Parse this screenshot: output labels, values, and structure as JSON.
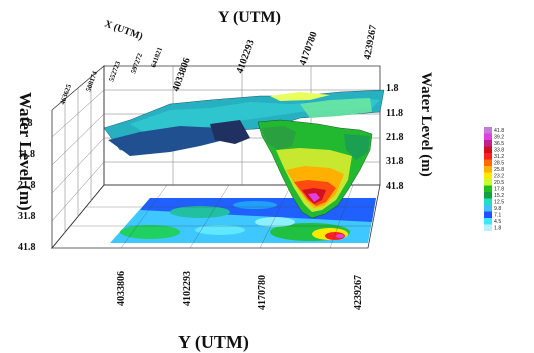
{
  "chart_data": {
    "type": "surface3d",
    "title": "",
    "axes": {
      "y_top_label": "Y (UTM)",
      "y_bottom_label": "Y (UTM)",
      "x_label": "X (UTM)",
      "z_left_label": "Water Level (m)",
      "z_right_label": "Water Level (m)",
      "y_ticks": [
        "4033806",
        "4102293",
        "4170780",
        "4239267"
      ],
      "x_ticks": [
        "463625",
        "508174",
        "552723",
        "597272",
        "641821"
      ],
      "z_ticks": [
        "1.8",
        "11.8",
        "21.8",
        "31.8",
        "41.8"
      ],
      "z_range": [
        1.8,
        41.8
      ],
      "z_inverted": true
    },
    "legend": {
      "placement": "right",
      "levels": [
        "41.8",
        "39.2",
        "36.5",
        "33.8",
        "31.2",
        "28.5",
        "25.8",
        "23.2",
        "20.5",
        "17.8",
        "15.2",
        "12.5",
        "9.8",
        "7.1",
        "4.5",
        "1.8"
      ],
      "colors": [
        "#c57bd8",
        "#e040e0",
        "#c02090",
        "#d01020",
        "#ff2020",
        "#ff6a00",
        "#ffb000",
        "#ffe800",
        "#c8ff30",
        "#20c020",
        "#10a040",
        "#20e0c0",
        "#40c0ff",
        "#2050ff",
        "#40e8ff",
        "#b8f0ff"
      ]
    }
  }
}
